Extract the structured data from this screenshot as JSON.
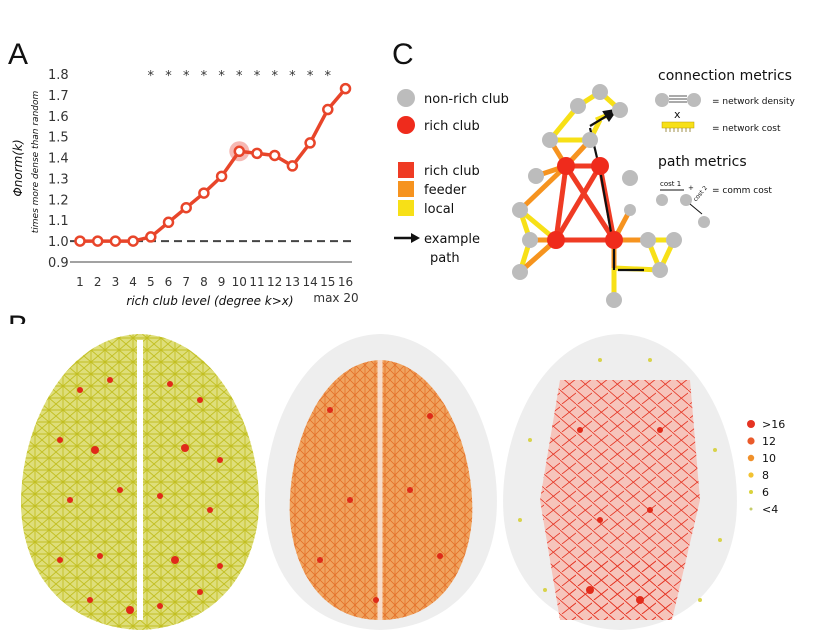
{
  "panels": {
    "a": "A",
    "b": "B",
    "c": "C"
  },
  "chart_data": {
    "type": "line",
    "x": [
      1,
      2,
      3,
      4,
      5,
      6,
      7,
      8,
      9,
      10,
      11,
      12,
      13,
      14,
      15,
      16
    ],
    "x_tick_labels": [
      "1",
      "2",
      "3",
      "4",
      "5",
      "6",
      "7",
      "8",
      "9",
      "10",
      "11",
      "12",
      "13",
      "14",
      "15",
      "16"
    ],
    "x_max_note": "max 20",
    "values": [
      1.0,
      1.0,
      1.0,
      1.0,
      1.02,
      1.09,
      1.16,
      1.23,
      1.31,
      1.43,
      1.42,
      1.41,
      1.36,
      1.47,
      1.63,
      1.73
    ],
    "highlight_index": 9,
    "significance_marker": "*",
    "significant_from": 4,
    "significant_to": 14,
    "ylim": [
      0.9,
      1.8
    ],
    "y_ticks": [
      0.9,
      1.0,
      1.1,
      1.2,
      1.3,
      1.4,
      1.5,
      1.6,
      1.7,
      1.8
    ],
    "y_tick_labels": [
      "0.9",
      "1.0",
      "1.1",
      "1.2",
      "1.3",
      "1.4",
      "1.5",
      "1.6",
      "1.7",
      "1.8"
    ],
    "reference_line": 1.0,
    "ylabel_main": "Φnorm(k)",
    "ylabel_sub": "times more dense than random",
    "xlabel": "rich club level (degree k>x)",
    "line_color": "#e8452a",
    "highlight_color": "#f4a6a0"
  },
  "legend_c": {
    "non_rich_club": "non-rich club",
    "rich_club_node": "rich club",
    "edge_rich_club": "rich club",
    "edge_feeder": "feeder",
    "edge_local": "local",
    "example_path_1": "example",
    "example_path_2": "path",
    "colors": {
      "rich": "#ef3b24",
      "feeder": "#f6931f",
      "local": "#f7e017",
      "node_gray": "#bcbcbc"
    }
  },
  "metrics": {
    "connection_title": "connection metrics",
    "density_label": "= network density",
    "cross": "x",
    "cost_label": "= network cost",
    "path_title": "path metrics",
    "cost1": "cost 1",
    "plus": "+",
    "cost2": "cost 2",
    "comm_cost_label": "= comm cost"
  },
  "degree_legend": {
    "items": [
      {
        "label": ">16",
        "color": "#e53322"
      },
      {
        "label": "12",
        "color": "#ea5a2a"
      },
      {
        "label": "10",
        "color": "#f0902a"
      },
      {
        "label": "8",
        "color": "#f2c232"
      },
      {
        "label": "6",
        "color": "#d9d23c"
      },
      {
        "label": "<4",
        "color": "#c5cc6a"
      }
    ]
  }
}
